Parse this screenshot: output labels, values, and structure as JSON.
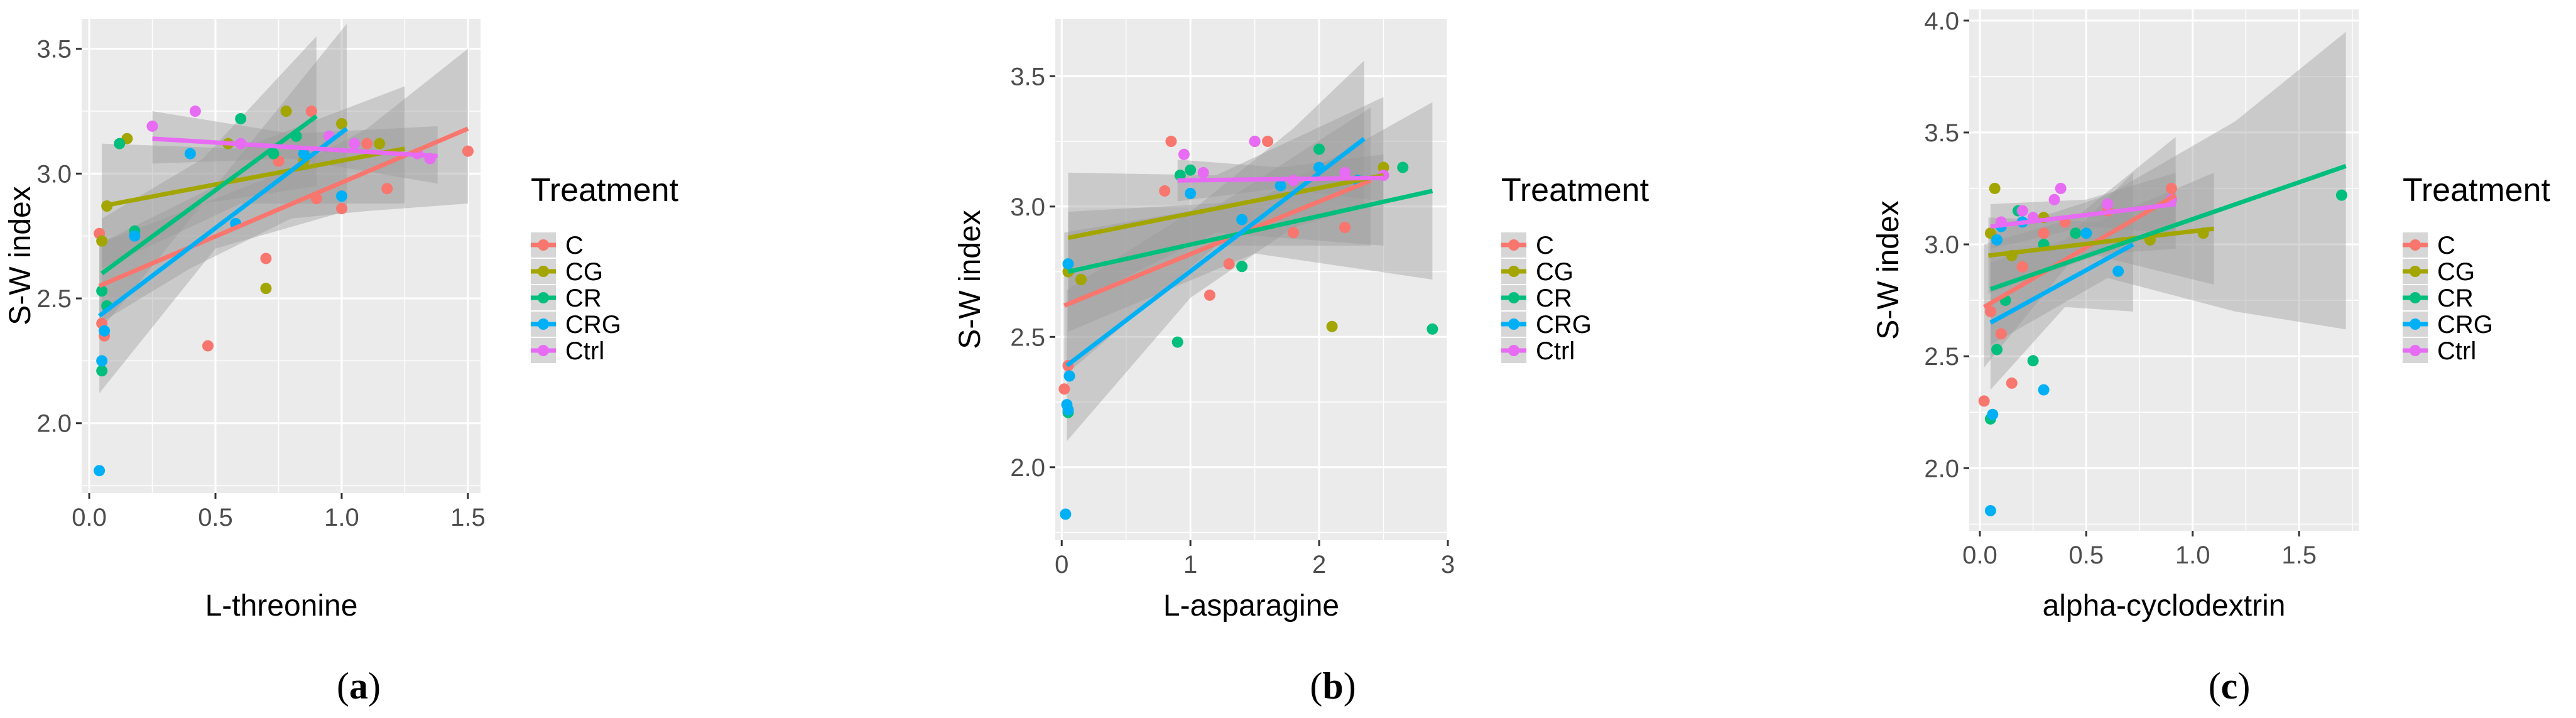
{
  "figure": {
    "legend_title": "Treatment",
    "treatments": [
      "C",
      "CG",
      "CR",
      "CRG",
      "Ctrl"
    ],
    "colors": {
      "C": "#F8766D",
      "CG": "#A3A500",
      "CR": "#00BF7D",
      "CRG": "#00B0F6",
      "Ctrl": "#E76BF3"
    },
    "panel_background": "#EBEBEB",
    "grid_color": "#FFFFFF",
    "ribbon_color": "#999999",
    "captions": [
      {
        "open": "(",
        "letter": "a",
        "close": ")"
      },
      {
        "open": "(",
        "letter": "b",
        "close": ")"
      },
      {
        "open": "(",
        "letter": "c",
        "close": ")"
      }
    ]
  },
  "chart_data": [
    {
      "type": "scatter",
      "title": "",
      "xlabel": "L-threonine",
      "ylabel": "S-W index",
      "xlim": [
        -0.03,
        1.55
      ],
      "ylim": [
        1.72,
        3.62
      ],
      "xticks": [
        0.0,
        0.5,
        1.0,
        1.5
      ],
      "xtick_labels": [
        "0.0",
        "0.5",
        "1.0",
        "1.5"
      ],
      "yticks": [
        2.0,
        2.5,
        3.0,
        3.5
      ],
      "ytick_labels": [
        "2.0",
        "2.5",
        "3.0",
        "3.5"
      ],
      "series": [
        {
          "name": "C",
          "points": [
            [
              0.04,
              2.76
            ],
            [
              0.05,
              2.4
            ],
            [
              0.06,
              2.35
            ],
            [
              0.47,
              2.31
            ],
            [
              0.7,
              2.66
            ],
            [
              0.75,
              3.05
            ],
            [
              0.88,
              3.25
            ],
            [
              0.9,
              2.9
            ],
            [
              1.0,
              2.86
            ],
            [
              1.1,
              3.12
            ],
            [
              1.18,
              2.94
            ],
            [
              1.5,
              3.09
            ]
          ],
          "fit": [
            [
              0.04,
              2.55
            ],
            [
              1.5,
              3.18
            ]
          ],
          "band": [
            [
              0.04,
              2.4,
              2.72
            ],
            [
              0.4,
              2.62,
              2.86
            ],
            [
              0.8,
              2.82,
              3.02
            ],
            [
              1.1,
              2.85,
              3.18
            ],
            [
              1.5,
              2.88,
              3.5
            ]
          ]
        },
        {
          "name": "CG",
          "points": [
            [
              0.05,
              2.73
            ],
            [
              0.07,
              2.87
            ],
            [
              0.15,
              3.14
            ],
            [
              0.55,
              3.12
            ],
            [
              0.7,
              2.54
            ],
            [
              0.78,
              3.25
            ],
            [
              0.85,
              3.05
            ],
            [
              1.0,
              3.2
            ],
            [
              1.15,
              3.12
            ]
          ],
          "fit": [
            [
              0.05,
              2.87
            ],
            [
              1.25,
              3.1
            ]
          ],
          "band": [
            [
              0.05,
              2.62,
              3.12
            ],
            [
              0.6,
              2.88,
              3.1
            ],
            [
              1.25,
              2.88,
              3.35
            ]
          ]
        },
        {
          "name": "CR",
          "points": [
            [
              0.05,
              2.53
            ],
            [
              0.05,
              2.21
            ],
            [
              0.07,
              2.47
            ],
            [
              0.12,
              3.12
            ],
            [
              0.18,
              2.77
            ],
            [
              0.6,
              3.22
            ],
            [
              0.73,
              3.08
            ],
            [
              0.82,
              3.15
            ]
          ],
          "fit": [
            [
              0.05,
              2.6
            ],
            [
              0.9,
              3.23
            ]
          ],
          "band": [
            [
              0.05,
              2.38,
              2.82
            ],
            [
              0.45,
              2.88,
              3.06
            ],
            [
              0.9,
              2.95,
              3.55
            ]
          ]
        },
        {
          "name": "CRG",
          "points": [
            [
              0.04,
              1.81
            ],
            [
              0.05,
              2.25
            ],
            [
              0.06,
              2.37
            ],
            [
              0.18,
              2.75
            ],
            [
              0.4,
              3.08
            ],
            [
              0.58,
              2.8
            ],
            [
              0.85,
              3.08
            ],
            [
              1.0,
              2.91
            ]
          ],
          "fit": [
            [
              0.04,
              2.43
            ],
            [
              1.02,
              3.18
            ]
          ],
          "band": [
            [
              0.04,
              2.12,
              2.72
            ],
            [
              0.5,
              2.7,
              2.95
            ],
            [
              1.02,
              2.85,
              3.6
            ]
          ]
        },
        {
          "name": "Ctrl",
          "points": [
            [
              0.25,
              3.19
            ],
            [
              0.42,
              3.25
            ],
            [
              0.6,
              3.12
            ],
            [
              0.95,
              3.15
            ],
            [
              1.05,
              3.12
            ],
            [
              1.3,
              3.08
            ],
            [
              1.35,
              3.06
            ]
          ],
          "fit": [
            [
              0.25,
              3.14
            ],
            [
              1.38,
              3.07
            ]
          ],
          "band": [
            [
              0.25,
              3.04,
              3.25
            ],
            [
              0.8,
              3.06,
              3.16
            ],
            [
              1.38,
              2.96,
              3.19
            ]
          ]
        }
      ]
    },
    {
      "type": "scatter",
      "title": "",
      "xlabel": "L-asparagine",
      "ylabel": "S-W index",
      "xlim": [
        -0.05,
        3.0
      ],
      "ylim": [
        1.72,
        3.72
      ],
      "xticks": [
        0,
        1,
        2,
        3
      ],
      "xtick_labels": [
        "0",
        "1",
        "2",
        "3"
      ],
      "yticks": [
        2.0,
        2.5,
        3.0,
        3.5
      ],
      "ytick_labels": [
        "2.0",
        "2.5",
        "3.0",
        "3.5"
      ],
      "series": [
        {
          "name": "C",
          "points": [
            [
              0.02,
              2.3
            ],
            [
              0.05,
              2.39
            ],
            [
              0.8,
              3.06
            ],
            [
              0.85,
              3.25
            ],
            [
              1.15,
              2.66
            ],
            [
              1.3,
              2.78
            ],
            [
              1.6,
              3.25
            ],
            [
              1.8,
              2.9
            ],
            [
              2.2,
              2.92
            ]
          ],
          "fit": [
            [
              0.02,
              2.62
            ],
            [
              2.4,
              3.1
            ]
          ],
          "band": [
            [
              0.02,
              2.35,
              2.9
            ],
            [
              1.2,
              2.85,
              3.0
            ],
            [
              2.4,
              2.85,
              3.38
            ]
          ]
        },
        {
          "name": "CG",
          "points": [
            [
              0.05,
              2.75
            ],
            [
              0.15,
              2.72
            ],
            [
              1.5,
              3.25
            ],
            [
              2.1,
              2.54
            ],
            [
              2.5,
              3.15
            ]
          ],
          "fit": [
            [
              0.05,
              2.88
            ],
            [
              2.5,
              3.12
            ]
          ],
          "band": [
            [
              0.05,
              2.62,
              3.13
            ],
            [
              1.2,
              2.9,
              3.12
            ],
            [
              2.5,
              2.85,
              3.42
            ]
          ]
        },
        {
          "name": "CR",
          "points": [
            [
              0.05,
              2.21
            ],
            [
              0.9,
              2.48
            ],
            [
              0.92,
              3.12
            ],
            [
              1.0,
              3.14
            ],
            [
              1.4,
              2.77
            ],
            [
              2.0,
              3.22
            ],
            [
              2.65,
              3.15
            ],
            [
              2.88,
              2.53
            ]
          ],
          "fit": [
            [
              0.05,
              2.75
            ],
            [
              2.88,
              3.06
            ]
          ],
          "band": [
            [
              0.05,
              2.52,
              2.98
            ],
            [
              1.5,
              2.82,
              3.02
            ],
            [
              2.88,
              2.72,
              3.4
            ]
          ]
        },
        {
          "name": "CRG",
          "points": [
            [
              0.03,
              1.82
            ],
            [
              0.04,
              2.24
            ],
            [
              0.05,
              2.22
            ],
            [
              0.06,
              2.35
            ],
            [
              0.05,
              2.78
            ],
            [
              1.0,
              3.05
            ],
            [
              1.4,
              2.95
            ],
            [
              1.7,
              3.08
            ],
            [
              2.0,
              3.15
            ],
            [
              2.3,
              3.1
            ]
          ],
          "fit": [
            [
              0.04,
              2.39
            ],
            [
              2.35,
              3.26
            ]
          ],
          "band": [
            [
              0.04,
              2.1,
              2.68
            ],
            [
              1.0,
              2.65,
              2.98
            ],
            [
              1.8,
              2.92,
              3.3
            ],
            [
              2.35,
              3.0,
              3.56
            ]
          ]
        },
        {
          "name": "Ctrl",
          "points": [
            [
              0.95,
              3.2
            ],
            [
              1.1,
              3.13
            ],
            [
              1.5,
              3.25
            ],
            [
              1.8,
              3.1
            ],
            [
              2.2,
              3.13
            ],
            [
              2.5,
              3.12
            ]
          ],
          "fit": [
            [
              0.9,
              3.1
            ],
            [
              2.5,
              3.11
            ]
          ],
          "band": [
            [
              0.9,
              3.02,
              3.18
            ],
            [
              1.7,
              3.07,
              3.15
            ],
            [
              2.5,
              3.02,
              3.2
            ]
          ]
        }
      ]
    },
    {
      "type": "scatter",
      "title": "",
      "xlabel": "alpha-cyclodextrin",
      "ylabel": "S-W index",
      "xlim": [
        -0.05,
        1.78
      ],
      "ylim": [
        1.72,
        4.05
      ],
      "xticks": [
        0.0,
        0.5,
        1.0,
        1.5
      ],
      "xtick_labels": [
        "0.0",
        "0.5",
        "1.0",
        "1.5"
      ],
      "yticks": [
        2.0,
        2.5,
        3.0,
        3.5,
        4.0
      ],
      "ytick_labels": [
        "2.0",
        "2.5",
        "3.0",
        "3.5",
        "4.0"
      ],
      "series": [
        {
          "name": "C",
          "points": [
            [
              0.02,
              2.3
            ],
            [
              0.05,
              2.7
            ],
            [
              0.1,
              2.6
            ],
            [
              0.15,
              2.38
            ],
            [
              0.2,
              2.9
            ],
            [
              0.3,
              3.05
            ],
            [
              0.4,
              3.1
            ],
            [
              0.6,
              3.15
            ],
            [
              0.9,
              3.25
            ]
          ],
          "fit": [
            [
              0.02,
              2.72
            ],
            [
              0.92,
              3.22
            ]
          ],
          "band": [
            [
              0.02,
              2.45,
              3.0
            ],
            [
              0.45,
              2.95,
              3.12
            ],
            [
              0.92,
              2.98,
              3.48
            ]
          ]
        },
        {
          "name": "CG",
          "points": [
            [
              0.05,
              3.05
            ],
            [
              0.07,
              3.25
            ],
            [
              0.15,
              2.95
            ],
            [
              0.3,
              3.12
            ],
            [
              0.5,
              3.05
            ],
            [
              0.8,
              3.02
            ],
            [
              1.05,
              3.05
            ]
          ],
          "fit": [
            [
              0.04,
              2.95
            ],
            [
              1.1,
              3.07
            ]
          ],
          "band": [
            [
              0.04,
              2.78,
              3.12
            ],
            [
              0.55,
              2.95,
              3.1
            ],
            [
              1.1,
              2.82,
              3.32
            ]
          ]
        },
        {
          "name": "CR",
          "points": [
            [
              0.05,
              2.22
            ],
            [
              0.08,
              2.53
            ],
            [
              0.12,
              2.75
            ],
            [
              0.18,
              3.15
            ],
            [
              0.25,
              2.48
            ],
            [
              0.3,
              3.0
            ],
            [
              0.45,
              3.05
            ],
            [
              1.7,
              3.22
            ]
          ],
          "fit": [
            [
              0.05,
              2.8
            ],
            [
              1.72,
              3.35
            ]
          ],
          "band": [
            [
              0.05,
              2.55,
              3.05
            ],
            [
              0.6,
              2.85,
              3.22
            ],
            [
              1.2,
              2.7,
              3.55
            ],
            [
              1.72,
              2.62,
              3.95
            ]
          ]
        },
        {
          "name": "CRG",
          "points": [
            [
              0.05,
              1.81
            ],
            [
              0.06,
              2.24
            ],
            [
              0.08,
              3.02
            ],
            [
              0.1,
              3.08
            ],
            [
              0.2,
              3.1
            ],
            [
              0.3,
              2.35
            ],
            [
              0.5,
              3.05
            ],
            [
              0.65,
              2.88
            ]
          ],
          "fit": [
            [
              0.05,
              2.65
            ],
            [
              0.72,
              3.0
            ]
          ],
          "band": [
            [
              0.05,
              2.35,
              2.92
            ],
            [
              0.4,
              2.72,
              3.02
            ],
            [
              0.72,
              2.7,
              3.32
            ]
          ]
        },
        {
          "name": "Ctrl",
          "points": [
            [
              0.1,
              3.1
            ],
            [
              0.2,
              3.15
            ],
            [
              0.25,
              3.12
            ],
            [
              0.35,
              3.2
            ],
            [
              0.38,
              3.25
            ],
            [
              0.6,
              3.18
            ],
            [
              0.9,
              3.2
            ]
          ],
          "fit": [
            [
              0.05,
              3.08
            ],
            [
              0.92,
              3.18
            ]
          ],
          "band": [
            [
              0.05,
              2.98,
              3.18
            ],
            [
              0.5,
              3.08,
              3.2
            ],
            [
              0.92,
              3.05,
              3.32
            ]
          ]
        }
      ]
    }
  ]
}
